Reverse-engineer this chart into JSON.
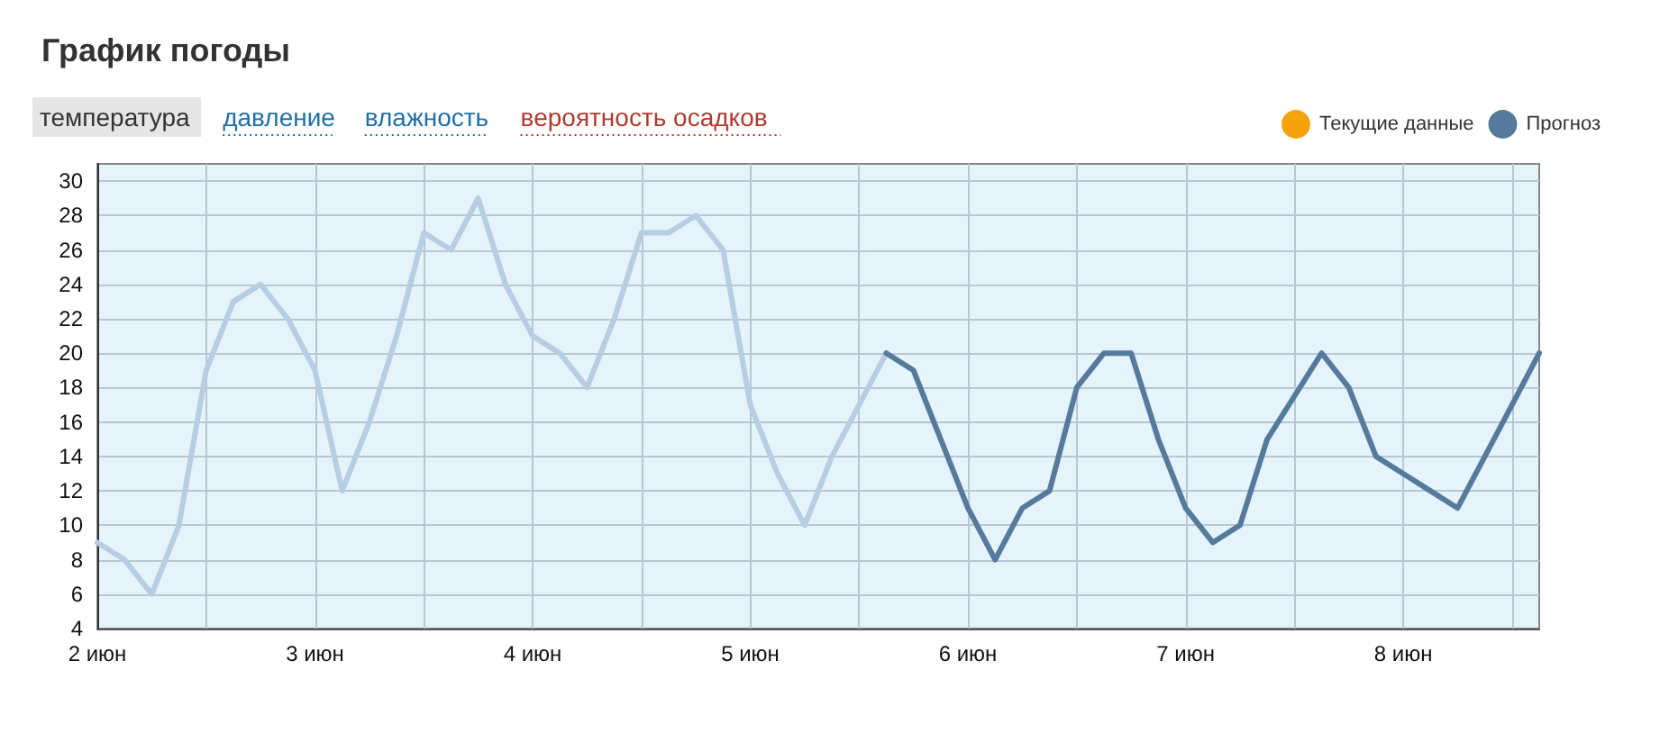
{
  "chart_data": {
    "type": "line",
    "title": "График погоды",
    "annotations": [
      "температура",
      "давление",
      "влажность",
      "вероятность осадков"
    ],
    "xlim": [
      "--06-02T00:00",
      "--06-08T15:00"
    ],
    "xticks": [
      {
        "value": "--06-02",
        "label": "2 июн"
      },
      {
        "value": "--06-02T12:00",
        "label": null
      },
      {
        "value": "--06-03",
        "label": "3 июн"
      },
      {
        "value": "--06-03T12:00",
        "label": null
      },
      {
        "value": "--06-04",
        "label": "4 июн"
      },
      {
        "value": "--06-04T12:00",
        "label": null
      },
      {
        "value": "--06-05",
        "label": "5 июн"
      },
      {
        "value": "--06-05T12:00",
        "label": null
      },
      {
        "value": "--06-06",
        "label": "6 июн"
      },
      {
        "value": "--06-06T12:00",
        "label": null
      },
      {
        "value": "--06-07",
        "label": "7 июн"
      },
      {
        "value": "--06-07T12:00",
        "label": null
      },
      {
        "value": "--06-08",
        "label": "8 июн"
      },
      {
        "value": "--06-08T12:00",
        "label": null
      }
    ],
    "ylim": [
      4,
      31
    ],
    "yticks": [
      4,
      6,
      8,
      10,
      12,
      14,
      16,
      18,
      20,
      22,
      24,
      26,
      28,
      30
    ],
    "grid": true,
    "legend": "top right",
    "marker": "none",
    "line_style": "solid",
    "series": [
      {
        "color": "#b7cde2",
        "x": [
          "--06-02T00:00",
          "--06-02T03:00",
          "--06-02T06:00",
          "--06-02T09:00",
          "--06-02T12:00",
          "--06-02T15:00",
          "--06-02T18:00",
          "--06-02T21:00",
          "--06-03T00:00",
          "--06-03T03:00",
          "--06-03T06:00",
          "--06-03T09:00",
          "--06-03T12:00",
          "--06-03T15:00",
          "--06-03T18:00",
          "--06-03T21:00",
          "--06-04T00:00",
          "--06-04T03:00",
          "--06-04T06:00",
          "--06-04T09:00",
          "--06-04T12:00",
          "--06-04T15:00",
          "--06-04T18:00",
          "--06-04T21:00",
          "--06-05T00:00",
          "--06-05T03:00",
          "--06-05T06:00",
          "--06-05T09:00",
          "--06-05T12:00",
          "--06-05T15:00"
        ],
        "values": [
          9,
          8,
          6,
          10,
          19,
          23,
          24,
          22,
          19,
          12,
          16,
          21,
          27,
          26,
          29,
          24,
          21,
          20,
          18,
          22,
          27,
          27,
          28,
          26,
          17,
          13,
          10,
          14,
          17,
          20
        ]
      },
      {
        "name": "Текущие данные",
        "color": "#f5a30a"
      },
      {
        "name": "Прогноз",
        "color": "#557a9b",
        "x": [
          "--06-05T15:00",
          "--06-05T18:00",
          "--06-05T21:00",
          "--06-06T00:00",
          "--06-06T03:00",
          "--06-06T06:00",
          "--06-06T09:00",
          "--06-06T12:00",
          "--06-06T15:00",
          "--06-06T18:00",
          "--06-06T21:00",
          "--06-07T00:00",
          "--06-07T03:00",
          "--06-07T06:00",
          "--06-07T09:00",
          "--06-07T12:00",
          "--06-07T15:00",
          "--06-07T18:00",
          "--06-07T21:00",
          "--06-08T00:00",
          "--06-08T03:00",
          "--06-08T06:00",
          "--06-08T09:00",
          "--06-08T12:00",
          "--06-08T15:00"
        ],
        "values": [
          20,
          19,
          15,
          11,
          8,
          11,
          12,
          18,
          20,
          20,
          15,
          11,
          9,
          10,
          15,
          17.5,
          20,
          18,
          14,
          13,
          12,
          11,
          14,
          17,
          20
        ]
      }
    ]
  }
}
